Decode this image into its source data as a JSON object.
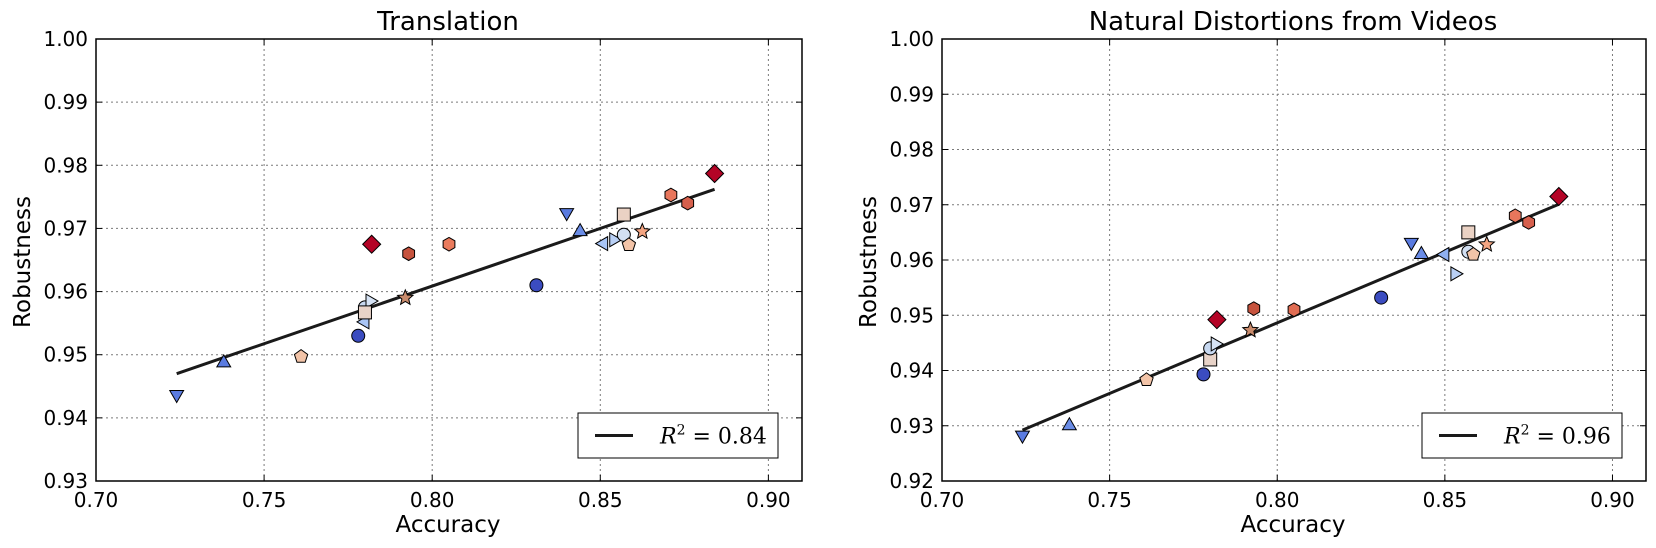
{
  "chart_data": [
    {
      "type": "scatter",
      "title": "Translation",
      "xlabel": "Accuracy",
      "ylabel": "Robustness",
      "xlim": [
        0.7,
        0.91
      ],
      "ylim": [
        0.93,
        1.0
      ],
      "xticks": [
        "0.70",
        "0.75",
        "0.80",
        "0.85",
        "0.90"
      ],
      "yticks": [
        "0.93",
        "0.94",
        "0.95",
        "0.96",
        "0.97",
        "0.98",
        "0.99",
        "1.00"
      ],
      "grid": true,
      "legend": {
        "placement": "lower-right",
        "label": "R^2 = 0.84",
        "sup": "2",
        "rest": " = 0.84"
      },
      "fit_line": {
        "x": [
          0.724,
          0.884
        ],
        "y": [
          0.947,
          0.9762
        ]
      },
      "points": [
        {
          "x": 0.724,
          "y": 0.9437,
          "marker": "tri-down",
          "color": "#5a7be0"
        },
        {
          "x": 0.738,
          "y": 0.9487,
          "marker": "tri-up",
          "color": "#5a7be0"
        },
        {
          "x": 0.761,
          "y": 0.9497,
          "marker": "pentagon",
          "color": "#f3c4a8"
        },
        {
          "x": 0.778,
          "y": 0.953,
          "marker": "circle",
          "color": "#3b4cc0"
        },
        {
          "x": 0.78,
          "y": 0.9552,
          "marker": "tri-left",
          "color": "#a9c5f5"
        },
        {
          "x": 0.78,
          "y": 0.9575,
          "marker": "circle",
          "color": "#c7d8f0"
        },
        {
          "x": 0.7815,
          "y": 0.9585,
          "marker": "tri-right",
          "color": "#d6e3f5"
        },
        {
          "x": 0.78,
          "y": 0.9567,
          "marker": "square",
          "color": "#e8d3c8"
        },
        {
          "x": 0.782,
          "y": 0.9675,
          "marker": "diamond",
          "color": "#b40426"
        },
        {
          "x": 0.793,
          "y": 0.966,
          "marker": "hexagon",
          "color": "#c6533e"
        },
        {
          "x": 0.792,
          "y": 0.959,
          "marker": "star",
          "color": "#c98b6c"
        },
        {
          "x": 0.805,
          "y": 0.9675,
          "marker": "hexagon",
          "color": "#ea7b5d"
        },
        {
          "x": 0.831,
          "y": 0.961,
          "marker": "circle",
          "color": "#3b4cc0"
        },
        {
          "x": 0.84,
          "y": 0.9725,
          "marker": "tri-down",
          "color": "#5a7be0"
        },
        {
          "x": 0.844,
          "y": 0.9695,
          "marker": "tri-up",
          "color": "#6a8ce6"
        },
        {
          "x": 0.851,
          "y": 0.9676,
          "marker": "tri-left",
          "color": "#a9c5f5"
        },
        {
          "x": 0.854,
          "y": 0.9682,
          "marker": "tri-right",
          "color": "#b9d0f5"
        },
        {
          "x": 0.857,
          "y": 0.9722,
          "marker": "square",
          "color": "#ead2c4"
        },
        {
          "x": 0.857,
          "y": 0.969,
          "marker": "circle",
          "color": "#d3e0f3"
        },
        {
          "x": 0.8585,
          "y": 0.9674,
          "marker": "pentagon",
          "color": "#f3c4a8"
        },
        {
          "x": 0.8625,
          "y": 0.9695,
          "marker": "star",
          "color": "#f4a582"
        },
        {
          "x": 0.871,
          "y": 0.9753,
          "marker": "hexagon",
          "color": "#e8765c"
        },
        {
          "x": 0.876,
          "y": 0.974,
          "marker": "hexagon",
          "color": "#d6604d"
        },
        {
          "x": 0.884,
          "y": 0.9787,
          "marker": "diamond",
          "color": "#b40426"
        }
      ]
    },
    {
      "type": "scatter",
      "title": "Natural Distortions from Videos",
      "xlabel": "Accuracy",
      "ylabel": "Robustness",
      "xlim": [
        0.7,
        0.91
      ],
      "ylim": [
        0.92,
        1.0
      ],
      "xticks": [
        "0.70",
        "0.75",
        "0.80",
        "0.85",
        "0.90"
      ],
      "yticks": [
        "0.92",
        "0.93",
        "0.94",
        "0.95",
        "0.96",
        "0.97",
        "0.98",
        "0.99",
        "1.00"
      ],
      "grid": true,
      "legend": {
        "placement": "lower-right",
        "label": "R^2 = 0.96",
        "sup": "2",
        "rest": " = 0.96"
      },
      "fit_line": {
        "x": [
          0.724,
          0.884
        ],
        "y": [
          0.9292,
          0.9701
        ]
      },
      "points": [
        {
          "x": 0.724,
          "y": 0.9283,
          "marker": "tri-down",
          "color": "#5a7be0"
        },
        {
          "x": 0.738,
          "y": 0.93,
          "marker": "tri-up",
          "color": "#6a8ce6"
        },
        {
          "x": 0.761,
          "y": 0.9383,
          "marker": "pentagon",
          "color": "#f3c4a8"
        },
        {
          "x": 0.778,
          "y": 0.9393,
          "marker": "circle",
          "color": "#3b4cc0"
        },
        {
          "x": 0.78,
          "y": 0.942,
          "marker": "square",
          "color": "#e8d3c8"
        },
        {
          "x": 0.78,
          "y": 0.944,
          "marker": "circle",
          "color": "#c7d8f0"
        },
        {
          "x": 0.7815,
          "y": 0.9448,
          "marker": "tri-right",
          "color": "#d6e3f5"
        },
        {
          "x": 0.782,
          "y": 0.9492,
          "marker": "diamond",
          "color": "#b40426"
        },
        {
          "x": 0.792,
          "y": 0.9473,
          "marker": "star",
          "color": "#c98b6c"
        },
        {
          "x": 0.793,
          "y": 0.9512,
          "marker": "hexagon",
          "color": "#c6533e"
        },
        {
          "x": 0.805,
          "y": 0.951,
          "marker": "hexagon",
          "color": "#e06c52"
        },
        {
          "x": 0.831,
          "y": 0.9532,
          "marker": "circle",
          "color": "#3b4cc0"
        },
        {
          "x": 0.84,
          "y": 0.9632,
          "marker": "tri-down",
          "color": "#5a7be0"
        },
        {
          "x": 0.843,
          "y": 0.961,
          "marker": "tri-up",
          "color": "#6a8ce6"
        },
        {
          "x": 0.85,
          "y": 0.961,
          "marker": "tri-left",
          "color": "#8fb0f0"
        },
        {
          "x": 0.853,
          "y": 0.9575,
          "marker": "tri-right",
          "color": "#b9d0f5"
        },
        {
          "x": 0.857,
          "y": 0.965,
          "marker": "square",
          "color": "#ead2c4"
        },
        {
          "x": 0.857,
          "y": 0.9615,
          "marker": "circle",
          "color": "#d3e0f3"
        },
        {
          "x": 0.8585,
          "y": 0.961,
          "marker": "pentagon",
          "color": "#f3c4a8"
        },
        {
          "x": 0.8625,
          "y": 0.9628,
          "marker": "star",
          "color": "#f4a582"
        },
        {
          "x": 0.871,
          "y": 0.968,
          "marker": "hexagon",
          "color": "#e8765c"
        },
        {
          "x": 0.875,
          "y": 0.9668,
          "marker": "hexagon",
          "color": "#d6604d"
        },
        {
          "x": 0.884,
          "y": 0.9715,
          "marker": "diamond",
          "color": "#b40426"
        }
      ]
    }
  ]
}
